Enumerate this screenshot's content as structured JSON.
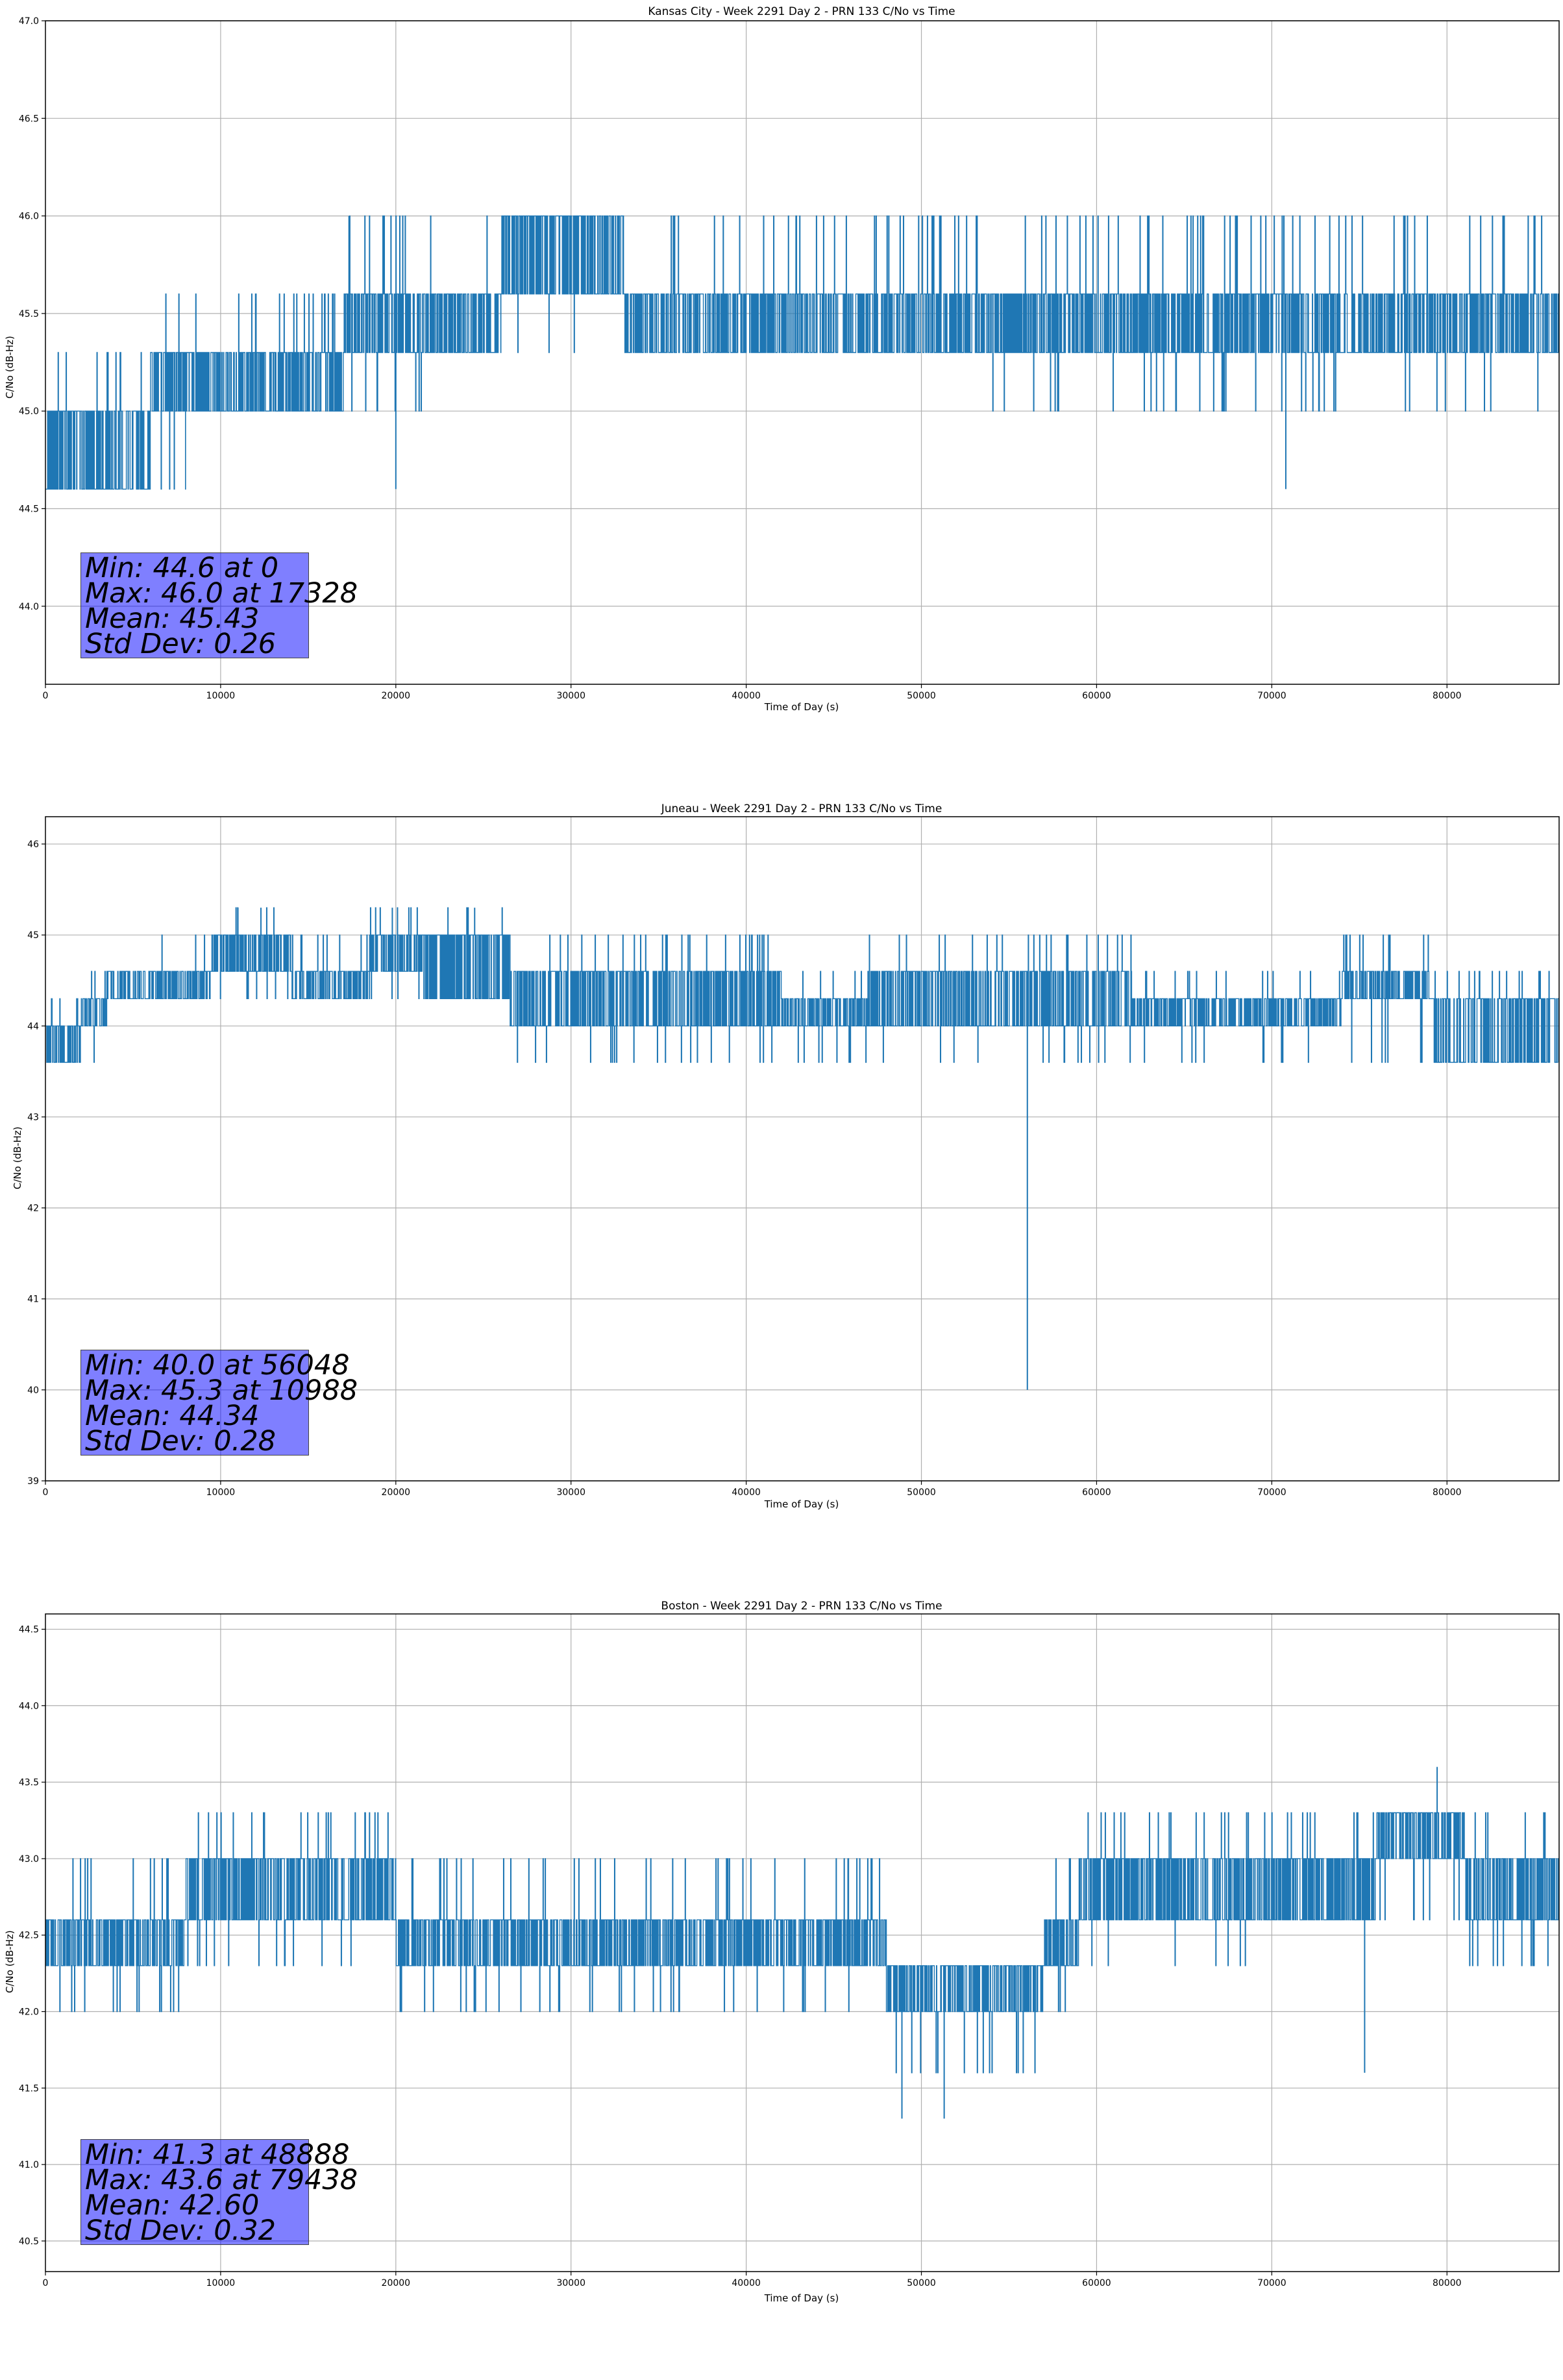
{
  "chart_data": [
    {
      "type": "line",
      "title": "Kansas City - Week 2291 Day 2 - PRN 133 C/No vs Time",
      "xlabel": "Time of Day (s)",
      "ylabel": "C/No (dB-Hz)",
      "xlim": [
        0,
        86400
      ],
      "ylim": [
        43.6,
        47.0
      ],
      "xticks": [
        0,
        10000,
        20000,
        30000,
        40000,
        50000,
        60000,
        70000,
        80000
      ],
      "yticks": [
        44.0,
        44.5,
        45.0,
        45.5,
        46.0,
        46.5,
        47.0
      ],
      "ytick_labels": [
        "44.0",
        "44.5",
        "45.0",
        "45.5",
        "46.0",
        "46.5",
        "47.0"
      ],
      "grid": true,
      "color": "#1f77b4",
      "quantization": 0.3,
      "band_segments": [
        {
          "x": [
            0,
            2000
          ],
          "low": 44.6,
          "high": 45.0,
          "spike_high": 45.3,
          "spike_low": 44.6
        },
        {
          "x": [
            2000,
            6000
          ],
          "low": 44.6,
          "high": 45.0,
          "spike_high": 45.3,
          "spike_low": 44.6
        },
        {
          "x": [
            6000,
            8000
          ],
          "low": 45.0,
          "high": 45.3,
          "spike_high": 45.6,
          "spike_low": 44.6
        },
        {
          "x": [
            8000,
            17000
          ],
          "low": 45.0,
          "high": 45.3,
          "spike_high": 45.6,
          "spike_low": 45.0
        },
        {
          "x": [
            17000,
            21500
          ],
          "low": 45.3,
          "high": 45.6,
          "spike_high": 46.0,
          "spike_low": 45.0
        },
        {
          "x": [
            21500,
            26000
          ],
          "low": 45.3,
          "high": 45.6,
          "spike_high": 46.0,
          "spike_low": 45.3
        },
        {
          "x": [
            26000,
            33000
          ],
          "low": 45.6,
          "high": 46.0,
          "spike_high": 46.0,
          "spike_low": 45.3
        },
        {
          "x": [
            33000,
            37000
          ],
          "low": 45.3,
          "high": 45.6,
          "spike_high": 46.0,
          "spike_low": 45.3
        },
        {
          "x": [
            37000,
            44000
          ],
          "low": 45.3,
          "high": 45.6,
          "spike_high": 46.0,
          "spike_low": 45.3
        },
        {
          "x": [
            44000,
            54000
          ],
          "low": 45.3,
          "high": 45.6,
          "spike_high": 46.0,
          "spike_low": 45.3
        },
        {
          "x": [
            54000,
            75000
          ],
          "low": 45.3,
          "high": 45.6,
          "spike_high": 46.0,
          "spike_low": 45.0
        },
        {
          "x": [
            75000,
            86400
          ],
          "low": 45.3,
          "high": 45.6,
          "spike_high": 46.0,
          "spike_low": 45.0
        }
      ],
      "outliers": [
        {
          "x": 17328,
          "y": 46.0
        },
        {
          "x": 20000,
          "y": 44.6
        },
        {
          "x": 70800,
          "y": 44.6
        }
      ],
      "stats": [
        "Min: 44.6 at 0",
        "Max: 46.0 at 17328",
        "Mean: 45.43",
        "Std Dev: 0.26"
      ]
    },
    {
      "type": "line",
      "title": "Juneau - Week 2291 Day 2 - PRN 133 C/No vs Time",
      "xlabel": "Time of Day (s)",
      "ylabel": "C/No (dB-Hz)",
      "xlim": [
        0,
        86400
      ],
      "ylim": [
        39.0,
        46.3
      ],
      "xticks": [
        0,
        10000,
        20000,
        30000,
        40000,
        50000,
        60000,
        70000,
        80000
      ],
      "yticks": [
        39,
        40,
        41,
        42,
        43,
        44,
        45,
        46
      ],
      "ytick_labels": [
        "39",
        "40",
        "41",
        "42",
        "43",
        "44",
        "45",
        "46"
      ],
      "grid": true,
      "color": "#1f77b4",
      "quantization": 0.3,
      "band_segments": [
        {
          "x": [
            0,
            2000
          ],
          "low": 43.6,
          "high": 44.0,
          "spike_high": 44.3,
          "spike_low": 43.6
        },
        {
          "x": [
            2000,
            3500
          ],
          "low": 44.0,
          "high": 44.3,
          "spike_high": 44.6,
          "spike_low": 43.6
        },
        {
          "x": [
            3500,
            9500
          ],
          "low": 44.3,
          "high": 44.6,
          "spike_high": 45.0,
          "spike_low": 44.3
        },
        {
          "x": [
            9500,
            14000
          ],
          "low": 44.6,
          "high": 45.0,
          "spike_high": 45.3,
          "spike_low": 44.3
        },
        {
          "x": [
            14000,
            18500
          ],
          "low": 44.3,
          "high": 44.6,
          "spike_high": 45.0,
          "spike_low": 44.3
        },
        {
          "x": [
            18500,
            21500
          ],
          "low": 44.6,
          "high": 45.0,
          "spike_high": 45.3,
          "spike_low": 44.3
        },
        {
          "x": [
            21500,
            26500
          ],
          "low": 44.3,
          "high": 45.0,
          "spike_high": 45.3,
          "spike_low": 44.3
        },
        {
          "x": [
            26500,
            42000
          ],
          "low": 44.0,
          "high": 44.6,
          "spike_high": 45.0,
          "spike_low": 43.6
        },
        {
          "x": [
            42000,
            47000
          ],
          "low": 44.0,
          "high": 44.3,
          "spike_high": 44.6,
          "spike_low": 43.6
        },
        {
          "x": [
            47000,
            62000
          ],
          "low": 44.0,
          "high": 44.6,
          "spike_high": 45.0,
          "spike_low": 43.6
        },
        {
          "x": [
            62000,
            74000
          ],
          "low": 44.0,
          "high": 44.3,
          "spike_high": 44.6,
          "spike_low": 43.6
        },
        {
          "x": [
            74000,
            79000
          ],
          "low": 44.3,
          "high": 44.6,
          "spike_high": 45.0,
          "spike_low": 43.6
        },
        {
          "x": [
            79000,
            86400
          ],
          "low": 43.6,
          "high": 44.3,
          "spike_high": 44.6,
          "spike_low": 43.6
        }
      ],
      "outliers": [
        {
          "x": 10988,
          "y": 45.3
        },
        {
          "x": 12300,
          "y": 45.3
        },
        {
          "x": 19800,
          "y": 45.3
        },
        {
          "x": 24500,
          "y": 45.3
        },
        {
          "x": 56048,
          "y": 40.0
        }
      ],
      "stats": [
        "Min: 40.0 at 56048",
        "Max: 45.3 at 10988",
        "Mean: 44.34",
        "Std Dev: 0.28"
      ]
    },
    {
      "type": "line",
      "title": "Boston - Week 2291 Day 2 - PRN 133 C/No vs Time",
      "xlabel": "Time of Day (s)",
      "ylabel": "C/No (dB-Hz)",
      "xlim": [
        0,
        86400
      ],
      "ylim": [
        40.3,
        44.6
      ],
      "xticks": [
        0,
        10000,
        20000,
        30000,
        40000,
        50000,
        60000,
        70000,
        80000
      ],
      "yticks": [
        40.5,
        41.0,
        41.5,
        42.0,
        42.5,
        43.0,
        43.5,
        44.0,
        44.5
      ],
      "ytick_labels": [
        "40.5",
        "41.0",
        "41.5",
        "42.0",
        "42.5",
        "43.0",
        "43.5",
        "44.0",
        "44.5"
      ],
      "grid": true,
      "color": "#1f77b4",
      "quantization": 0.3,
      "band_segments": [
        {
          "x": [
            0,
            5000
          ],
          "low": 42.3,
          "high": 42.6,
          "spike_high": 43.0,
          "spike_low": 42.0
        },
        {
          "x": [
            5000,
            8000
          ],
          "low": 42.3,
          "high": 42.6,
          "spike_high": 43.0,
          "spike_low": 42.0
        },
        {
          "x": [
            8000,
            20000
          ],
          "low": 42.6,
          "high": 43.0,
          "spike_high": 43.3,
          "spike_low": 42.3
        },
        {
          "x": [
            20000,
            48000
          ],
          "low": 42.3,
          "high": 42.6,
          "spike_high": 43.0,
          "spike_low": 42.0
        },
        {
          "x": [
            48000,
            57000
          ],
          "low": 42.0,
          "high": 42.3,
          "spike_high": 42.3,
          "spike_low": 41.6
        },
        {
          "x": [
            57000,
            59000
          ],
          "low": 42.3,
          "high": 42.6,
          "spike_high": 43.0,
          "spike_low": 42.0
        },
        {
          "x": [
            59000,
            70000
          ],
          "low": 42.6,
          "high": 43.0,
          "spike_high": 43.3,
          "spike_low": 42.3
        },
        {
          "x": [
            70000,
            76000
          ],
          "low": 42.6,
          "high": 43.0,
          "spike_high": 43.3,
          "spike_low": 42.6
        },
        {
          "x": [
            76000,
            81000
          ],
          "low": 43.0,
          "high": 43.3,
          "spike_high": 43.3,
          "spike_low": 42.6
        },
        {
          "x": [
            81000,
            86400
          ],
          "low": 42.6,
          "high": 43.0,
          "spike_high": 43.3,
          "spike_low": 42.3
        }
      ],
      "outliers": [
        {
          "x": 48888,
          "y": 41.3
        },
        {
          "x": 51300,
          "y": 41.3
        },
        {
          "x": 75300,
          "y": 41.6
        },
        {
          "x": 79438,
          "y": 43.6
        }
      ],
      "stats": [
        "Min: 41.3 at 48888",
        "Max: 43.6 at 79438",
        "Mean: 42.60",
        "Std Dev: 0.32"
      ]
    }
  ]
}
